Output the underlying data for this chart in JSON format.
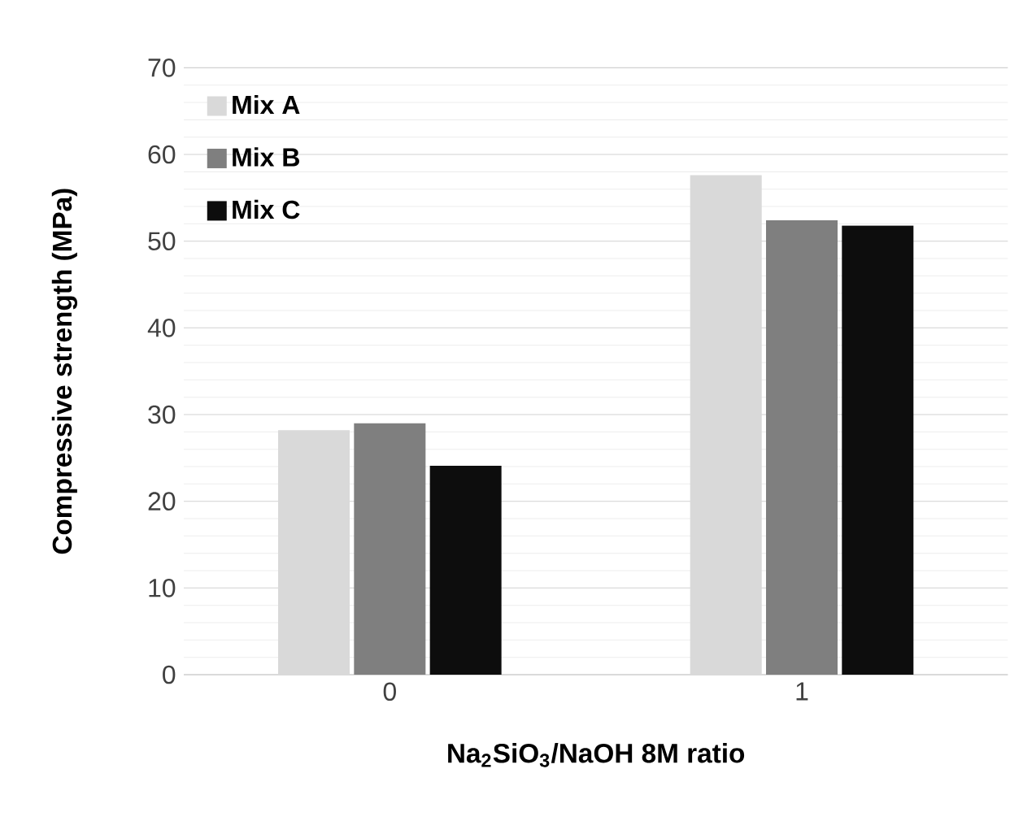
{
  "chart_data": {
    "type": "bar",
    "xlabel": "Na$_{2}$SiO$_{3}$/NaOH 8M ratio",
    "ylabel": "Compressive strength (MPa)",
    "categories": [
      "0",
      "1"
    ],
    "series": [
      {
        "name": "Mix A",
        "color": "#d9d9d9",
        "values": [
          28.2,
          57.6
        ]
      },
      {
        "name": "Mix B",
        "color": "#7f7f7f",
        "values": [
          29.0,
          52.4
        ]
      },
      {
        "name": "Mix C",
        "color": "#0d0d0d",
        "values": [
          24.1,
          51.8
        ]
      }
    ],
    "ylim": [
      0,
      70
    ],
    "yticks": [
      0,
      10,
      20,
      30,
      40,
      50,
      60,
      70
    ],
    "grid": "y",
    "legend": "top left"
  }
}
